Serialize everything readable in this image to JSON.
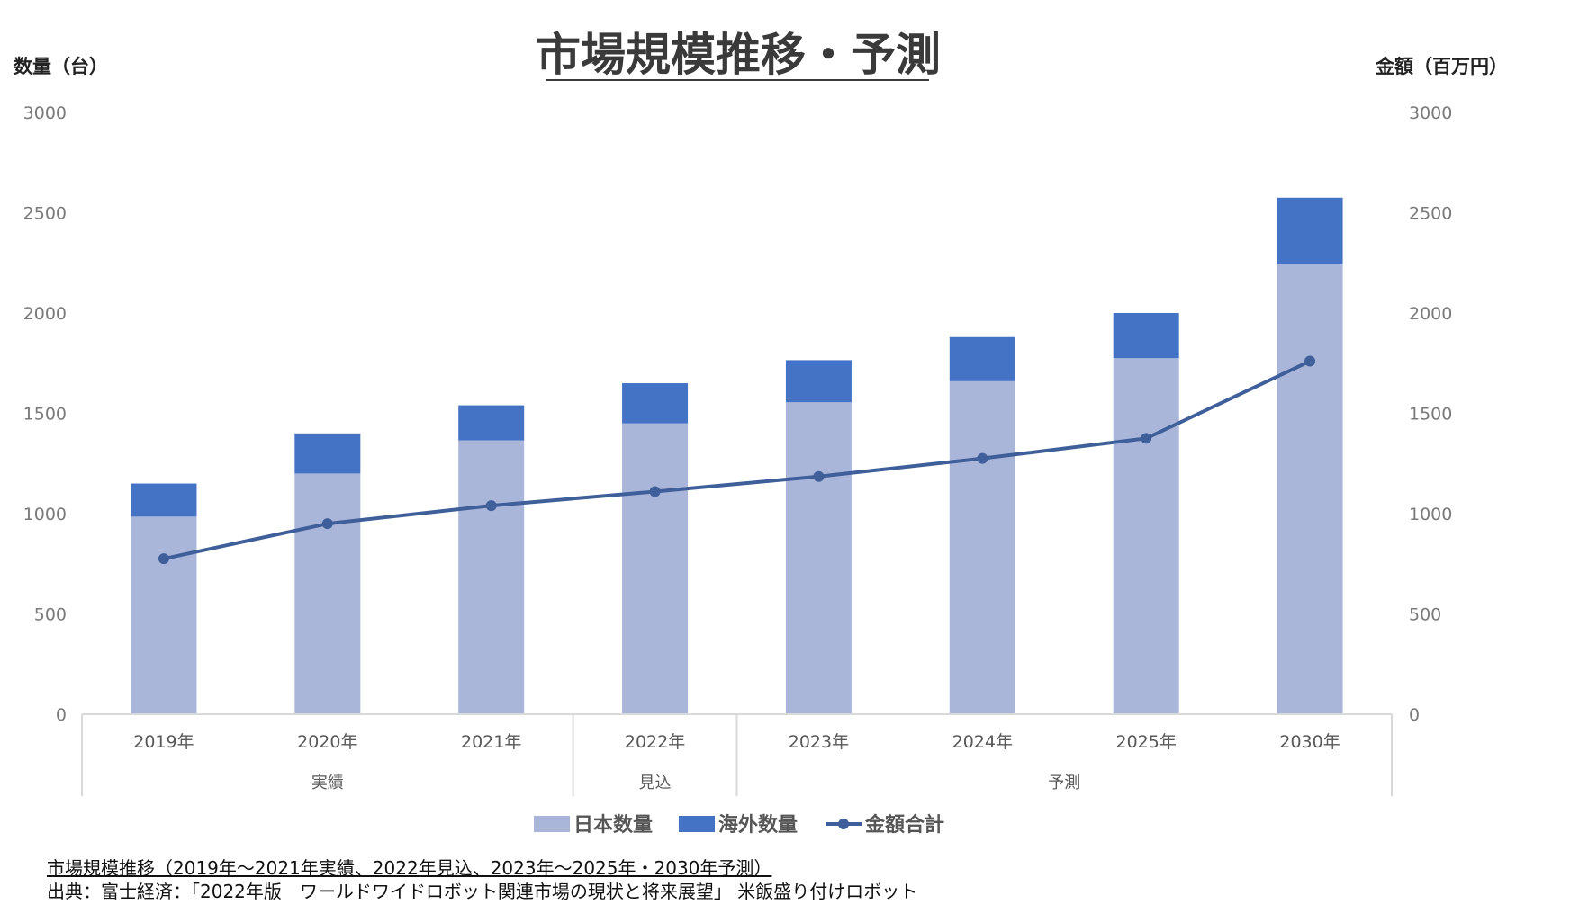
{
  "chart_data": {
    "type": "bar",
    "subtype": "stacked-bar-with-line",
    "title": "市場規模推移・予測",
    "ylabel_left": "数量（台）",
    "ylabel_right": "金額（百万円）",
    "ylim_left": [
      0,
      3000
    ],
    "ylim_right": [
      0,
      3000
    ],
    "yticks": [
      0,
      500,
      1000,
      1500,
      2000,
      2500,
      3000
    ],
    "categories": [
      "2019年",
      "2020年",
      "2021年",
      "2022年",
      "2023年",
      "2024年",
      "2025年",
      "2030年"
    ],
    "groups": [
      {
        "label": "実績",
        "span": 3
      },
      {
        "label": "見込",
        "span": 1
      },
      {
        "label": "予測",
        "span": 4
      }
    ],
    "series": [
      {
        "name": "日本数量",
        "kind": "bar",
        "axis": "left",
        "color": "#a9b6da",
        "values": [
          985,
          1200,
          1365,
          1450,
          1555,
          1660,
          1775,
          2245
        ]
      },
      {
        "name": "海外数量",
        "kind": "bar",
        "axis": "left",
        "color": "#4472c4",
        "values": [
          165,
          200,
          175,
          200,
          210,
          220,
          225,
          330
        ]
      },
      {
        "name": "金額合計",
        "kind": "line",
        "axis": "right",
        "color": "#3f5f9a",
        "values": [
          775,
          950,
          1040,
          1110,
          1185,
          1275,
          1375,
          1760
        ]
      }
    ],
    "grid": false,
    "legend": "bottom"
  },
  "caption": {
    "line1": "市場規模推移（2019年～2021年実績、2022年見込、2023年～2025年・2030年予測）",
    "line2": "出典：富士経済：「2022年版　ワールドワイドロボット関連市場の現状と将来展望」 米飯盛り付けロボット"
  }
}
